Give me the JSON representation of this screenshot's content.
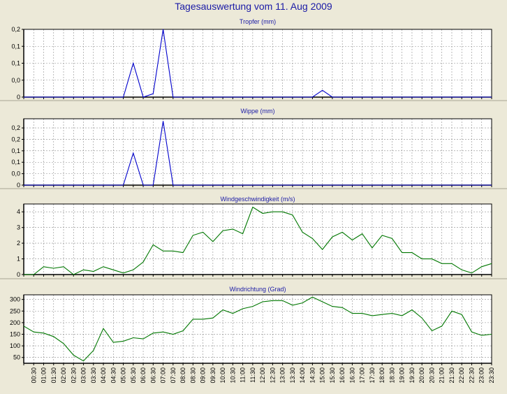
{
  "title": "Tagesauswertung vom 11. Aug 2009",
  "x_labels": [
    "00:30",
    "01:00",
    "01:30",
    "02:00",
    "02:30",
    "03:00",
    "03:30",
    "04:00",
    "04:30",
    "05:00",
    "05:30",
    "06:00",
    "06:30",
    "07:00",
    "07:30",
    "08:00",
    "08:30",
    "09:00",
    "09:30",
    "10:00",
    "10:30",
    "11:00",
    "11:30",
    "12:00",
    "12:30",
    "13:00",
    "13:30",
    "14:00",
    "14:30",
    "15:00",
    "15:30",
    "16:00",
    "16:30",
    "17:00",
    "17:30",
    "18:00",
    "18:30",
    "19:00",
    "19:30",
    "20:00",
    "20:30",
    "21:00",
    "21:30",
    "22:00",
    "22:30",
    "23:00",
    "23:30"
  ],
  "chart_data": [
    {
      "type": "line",
      "title": "Tropfer (mm)",
      "color": "#0000cc",
      "x_start": "00:00",
      "x_step_minutes": 30,
      "ylim": [
        0,
        0.2
      ],
      "y_ticks": [
        0,
        0.05,
        0.1,
        0.15,
        0.2
      ],
      "y_tick_labels": [
        "0",
        "0,0",
        "0,1",
        "0,1",
        "0,2"
      ],
      "values": [
        0,
        0,
        0,
        0,
        0,
        0,
        0,
        0,
        0,
        0,
        0,
        0.1,
        0,
        0.01,
        0.2,
        0,
        0,
        0,
        0,
        0,
        0,
        0,
        0,
        0,
        0,
        0,
        0,
        0,
        0,
        0,
        0.02,
        0,
        0,
        0,
        0,
        0,
        0,
        0,
        0,
        0,
        0,
        0,
        0,
        0,
        0,
        0,
        0,
        0
      ]
    },
    {
      "type": "line",
      "title": "Wippe (mm)",
      "color": "#0000cc",
      "x_start": "00:00",
      "x_step_minutes": 30,
      "ylim": [
        0,
        0.29
      ],
      "y_ticks": [
        0,
        0.05,
        0.1,
        0.15,
        0.2,
        0.25
      ],
      "y_tick_labels": [
        "0",
        "0,0",
        "0,1",
        "0,1",
        "0,2",
        "0,2"
      ],
      "values": [
        0,
        0,
        0,
        0,
        0,
        0,
        0,
        0,
        0,
        0,
        0,
        0.14,
        0,
        0,
        0.28,
        0,
        0,
        0,
        0,
        0,
        0,
        0,
        0,
        0,
        0,
        0,
        0,
        0,
        0,
        0,
        0,
        0,
        0,
        0,
        0,
        0,
        0,
        0,
        0,
        0,
        0,
        0,
        0,
        0,
        0,
        0,
        0,
        0
      ]
    },
    {
      "type": "line",
      "title": "Windgeschwindigkeit (m/s)",
      "color": "#007700",
      "x_start": "00:00",
      "x_step_minutes": 30,
      "ylim": [
        0,
        4.5
      ],
      "y_ticks": [
        0,
        1,
        2,
        3,
        4
      ],
      "y_tick_labels": [
        "0",
        "1",
        "2",
        "3",
        "4"
      ],
      "values": [
        0,
        0,
        0.5,
        0.4,
        0.5,
        0,
        0.3,
        0.2,
        0.5,
        0.3,
        0.1,
        0.3,
        0.8,
        1.9,
        1.5,
        1.5,
        1.4,
        2.5,
        2.7,
        2.1,
        2.8,
        2.9,
        2.6,
        4.3,
        3.9,
        4.0,
        4.0,
        3.8,
        2.7,
        2.3,
        1.6,
        2.4,
        2.7,
        2.2,
        2.6,
        1.7,
        2.5,
        2.3,
        1.4,
        1.4,
        1.0,
        1.0,
        0.7,
        0.7,
        0.3,
        0.1,
        0.5,
        0.7
      ]
    },
    {
      "type": "line",
      "title": "Windrichtung (Grad)",
      "color": "#007700",
      "x_start": "00:00",
      "x_step_minutes": 30,
      "ylim": [
        25,
        320
      ],
      "y_ticks": [
        50,
        100,
        150,
        200,
        250,
        300
      ],
      "y_tick_labels": [
        "50",
        "100",
        "150",
        "200",
        "250",
        "300"
      ],
      "values": [
        185,
        160,
        155,
        140,
        110,
        60,
        35,
        80,
        175,
        115,
        120,
        135,
        130,
        155,
        160,
        150,
        165,
        215,
        215,
        220,
        255,
        240,
        260,
        270,
        290,
        295,
        295,
        275,
        285,
        310,
        290,
        270,
        265,
        240,
        240,
        230,
        235,
        240,
        230,
        255,
        220,
        165,
        185,
        250,
        235,
        160,
        145,
        150
      ]
    }
  ]
}
